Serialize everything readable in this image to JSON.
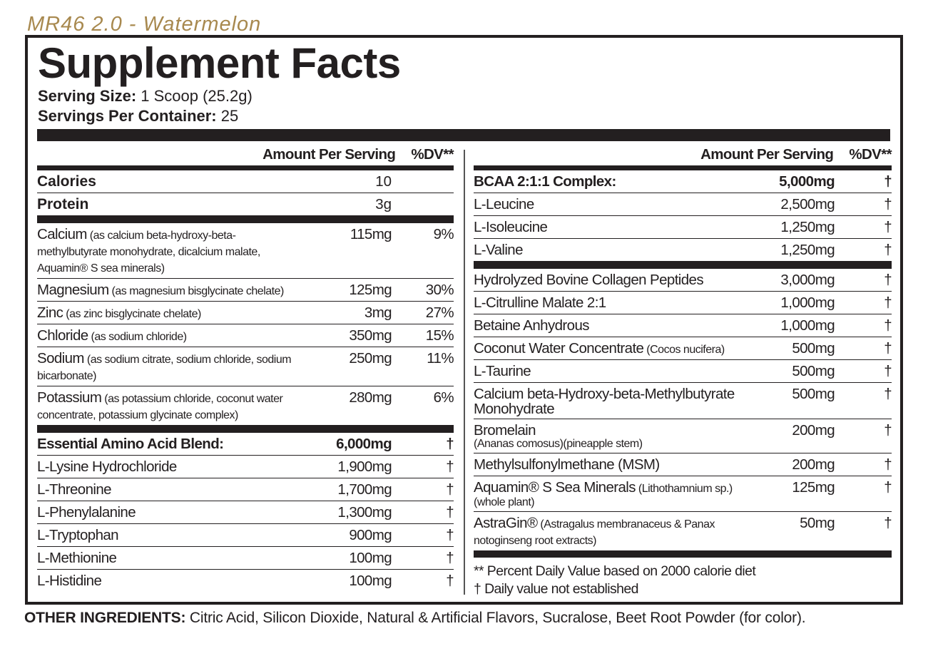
{
  "product_name": "MR46 2.0 - Watermelon",
  "title": "Supplement Facts",
  "serving_size_label": "Serving Size:",
  "serving_size": " 1 Scoop (25.2g)",
  "servings_label": "Servings Per Container:",
  "servings": " 25",
  "left": {
    "header_amount": "Amount Per Serving",
    "header_dv": "%DV**",
    "rows": [
      {
        "name": "Calories",
        "amount": "10",
        "dv": "",
        "style": "big"
      },
      {
        "name": "Protein",
        "amount": "3g",
        "dv": "",
        "style": "big",
        "after": "thick"
      },
      {
        "name": "Calcium",
        "detail": " (as calcium beta-hydroxy-beta-methylbutyrate monohydrate, dicalcium malate, Aquamin® S sea minerals)",
        "amount": "115mg",
        "dv": "9%"
      },
      {
        "name": "Magnesium",
        "detail": " (as magnesium bisglycinate chelate)",
        "amount": "125mg",
        "dv": "30%"
      },
      {
        "name": "Zinc",
        "detail": " (as zinc bisglycinate chelate)",
        "amount": "3mg",
        "dv": "27%"
      },
      {
        "name": "Chloride",
        "detail": " (as sodium chloride)",
        "amount": "350mg",
        "dv": "15%"
      },
      {
        "name": "Sodium",
        "detail": " (as sodium citrate, sodium chloride, sodium bicarbonate)",
        "amount": "250mg",
        "dv": "11%"
      },
      {
        "name": "Potassium",
        "detail": " (as potassium chloride, coconut water concentrate, potassium glycinate complex)",
        "amount": "280mg",
        "dv": "6%",
        "after": "thick"
      },
      {
        "name": "Essential Amino Acid Blend:",
        "amount": "6,000mg",
        "dv": "†",
        "style": "bold"
      },
      {
        "name": "L-Lysine Hydrochloride",
        "amount": "1,900mg",
        "dv": "†"
      },
      {
        "name": "L-Threonine",
        "amount": "1,700mg",
        "dv": "†"
      },
      {
        "name": "L-Phenylalanine",
        "amount": "1,300mg",
        "dv": "†"
      },
      {
        "name": "L-Tryptophan",
        "amount": "900mg",
        "dv": "†"
      },
      {
        "name": "L-Methionine",
        "amount": "100mg",
        "dv": "†"
      },
      {
        "name": "L-Histidine",
        "amount": "100mg",
        "dv": "†",
        "style": "last"
      }
    ]
  },
  "right": {
    "header_amount": "Amount Per Serving",
    "header_dv": "%DV**",
    "rows": [
      {
        "name": "BCAA 2:1:1 Complex:",
        "amount": "5,000mg",
        "dv": "†",
        "style": "bold"
      },
      {
        "name": "L-Leucine",
        "amount": "2,500mg",
        "dv": "†"
      },
      {
        "name": "L-Isoleucine",
        "amount": "1,250mg",
        "dv": "†"
      },
      {
        "name": "L-Valine",
        "amount": "1,250mg",
        "dv": "†",
        "after": "thick"
      },
      {
        "name": "Hydrolyzed Bovine Collagen Peptides",
        "amount": "3,000mg",
        "dv": "†"
      },
      {
        "name": "L-Citrulline Malate 2:1",
        "amount": "1,000mg",
        "dv": "†"
      },
      {
        "name": "Betaine Anhydrous",
        "amount": "1,000mg",
        "dv": "†"
      },
      {
        "name": "Coconut Water Concentrate",
        "detail": " (Cocos nucifera)",
        "amount": "500mg",
        "dv": "†"
      },
      {
        "name": "L-Taurine",
        "amount": "500mg",
        "dv": "†"
      },
      {
        "name": "Calcium beta-Hydroxy-beta-Methylbutyrate Monohydrate",
        "amount": "500mg",
        "dv": "†"
      },
      {
        "name": "Bromelain",
        "sub": "(Ananas comosus)(pineapple stem)",
        "amount": "200mg",
        "dv": "†"
      },
      {
        "name": "Methylsulfonylmethane (MSM)",
        "amount": "200mg",
        "dv": "†"
      },
      {
        "name": "Aquamin® S Sea Minerals",
        "detail": " (Lithothamnium sp.)",
        "sub": "(whole plant)",
        "amount": "125mg",
        "dv": "†"
      },
      {
        "name": "AstraGin®",
        "detail": " (Astragalus membranaceus & Panax notoginseng root extracts)",
        "amount": "50mg",
        "dv": "†",
        "style": "last",
        "after": "thick"
      }
    ],
    "footnote_dv": "** Percent Daily Value based on 2000 calorie diet",
    "footnote_dagger": "† Daily value not established"
  },
  "other_ingredients_label": "OTHER INGREDIENTS:",
  "other_ingredients": " Citric Acid, Silicon Dioxide, Natural & Artificial Flavors, Sucralose, Beet Root Powder (for color).",
  "colors": {
    "product_name": "#a8894f",
    "text": "#231f20"
  }
}
